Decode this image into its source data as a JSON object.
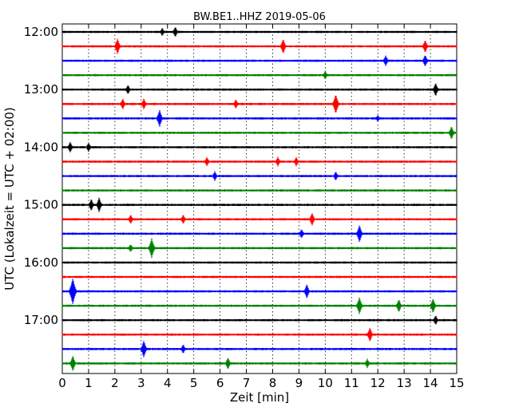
{
  "chart_data": {
    "type": "line",
    "title": "BW.BE1..HHZ 2019-05-06",
    "xlabel": "Zeit  [min]",
    "ylabel": "UTC (Lokalzeit = UTC + 02:00)",
    "xlim": [
      0,
      15
    ],
    "x_ticks": [
      "0",
      "1",
      "2",
      "3",
      "4",
      "5",
      "6",
      "7",
      "8",
      "9",
      "10",
      "11",
      "12",
      "13",
      "14",
      "15"
    ],
    "y_tick_labels": [
      "12:00",
      "13:00",
      "14:00",
      "15:00",
      "16:00",
      "17:00"
    ],
    "grid": {
      "vertical_dotted": true
    },
    "trace_colors": [
      "#000000",
      "#ff0000",
      "#0000ff",
      "#008000"
    ],
    "traces_count": 24,
    "events": [
      {
        "trace": 0,
        "minute": 3.8,
        "amp": 0.25
      },
      {
        "trace": 0,
        "minute": 4.3,
        "amp": 0.35
      },
      {
        "trace": 1,
        "minute": 2.1,
        "amp": 0.55
      },
      {
        "trace": 1,
        "minute": 8.4,
        "amp": 0.5
      },
      {
        "trace": 1,
        "minute": 13.8,
        "amp": 0.45
      },
      {
        "trace": 2,
        "minute": 12.3,
        "amp": 0.35
      },
      {
        "trace": 2,
        "minute": 13.8,
        "amp": 0.4
      },
      {
        "trace": 3,
        "minute": 10.0,
        "amp": 0.25
      },
      {
        "trace": 4,
        "minute": 2.5,
        "amp": 0.3
      },
      {
        "trace": 4,
        "minute": 14.2,
        "amp": 0.45
      },
      {
        "trace": 5,
        "minute": 2.3,
        "amp": 0.35
      },
      {
        "trace": 5,
        "minute": 3.1,
        "amp": 0.35
      },
      {
        "trace": 5,
        "minute": 6.6,
        "amp": 0.3
      },
      {
        "trace": 5,
        "minute": 10.4,
        "amp": 0.7
      },
      {
        "trace": 6,
        "minute": 3.7,
        "amp": 0.6
      },
      {
        "trace": 6,
        "minute": 12.0,
        "amp": 0.2
      },
      {
        "trace": 7,
        "minute": 14.8,
        "amp": 0.45
      },
      {
        "trace": 8,
        "minute": 0.3,
        "amp": 0.35
      },
      {
        "trace": 8,
        "minute": 1.0,
        "amp": 0.3
      },
      {
        "trace": 9,
        "minute": 5.5,
        "amp": 0.3
      },
      {
        "trace": 9,
        "minute": 8.2,
        "amp": 0.3
      },
      {
        "trace": 9,
        "minute": 8.9,
        "amp": 0.3
      },
      {
        "trace": 10,
        "minute": 5.8,
        "amp": 0.3
      },
      {
        "trace": 10,
        "minute": 10.4,
        "amp": 0.3
      },
      {
        "trace": 12,
        "minute": 1.1,
        "amp": 0.4
      },
      {
        "trace": 12,
        "minute": 1.4,
        "amp": 0.5
      },
      {
        "trace": 13,
        "minute": 2.6,
        "amp": 0.3
      },
      {
        "trace": 13,
        "minute": 4.6,
        "amp": 0.3
      },
      {
        "trace": 13,
        "minute": 9.5,
        "amp": 0.45
      },
      {
        "trace": 14,
        "minute": 9.1,
        "amp": 0.3
      },
      {
        "trace": 14,
        "minute": 11.3,
        "amp": 0.6
      },
      {
        "trace": 15,
        "minute": 2.6,
        "amp": 0.25
      },
      {
        "trace": 15,
        "minute": 3.4,
        "amp": 0.7
      },
      {
        "trace": 18,
        "minute": 0.4,
        "amp": 0.95
      },
      {
        "trace": 18,
        "minute": 9.3,
        "amp": 0.5
      },
      {
        "trace": 19,
        "minute": 11.3,
        "amp": 0.6
      },
      {
        "trace": 19,
        "minute": 12.8,
        "amp": 0.45
      },
      {
        "trace": 19,
        "minute": 14.1,
        "amp": 0.5
      },
      {
        "trace": 20,
        "minute": 14.2,
        "amp": 0.3
      },
      {
        "trace": 21,
        "minute": 11.7,
        "amp": 0.5
      },
      {
        "trace": 22,
        "minute": 3.1,
        "amp": 0.6
      },
      {
        "trace": 22,
        "minute": 4.6,
        "amp": 0.3
      },
      {
        "trace": 23,
        "minute": 0.4,
        "amp": 0.55
      },
      {
        "trace": 23,
        "minute": 6.3,
        "amp": 0.4
      },
      {
        "trace": 23,
        "minute": 11.6,
        "amp": 0.3
      }
    ]
  }
}
